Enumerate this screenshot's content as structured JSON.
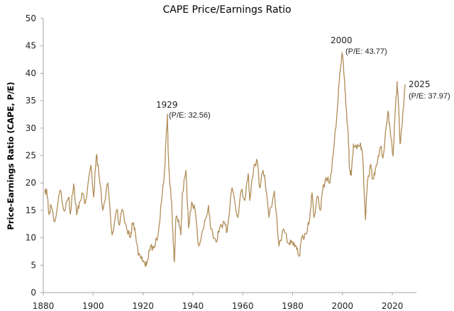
{
  "chart_data": {
    "type": "line",
    "title": "CAPE Price/Earnings Ratio",
    "xlabel": "",
    "ylabel": "Price-Earnings Ratio (CAPE, P/E)",
    "xlim": [
      1880,
      2030
    ],
    "ylim": [
      0,
      50
    ],
    "x_ticks": [
      1880,
      1900,
      1920,
      1940,
      1960,
      1980,
      2000,
      2020
    ],
    "y_ticks": [
      0,
      5,
      10,
      15,
      20,
      25,
      30,
      35,
      40,
      45,
      50
    ],
    "grid": false,
    "legend": null,
    "series_color": "#B08D57",
    "series": [
      {
        "name": "CAPE",
        "x": [
          1880.6,
          1881.4,
          1882.3,
          1883.1,
          1884.6,
          1886.8,
          1888.3,
          1890.2,
          1890.8,
          1892.2,
          1893.4,
          1894.5,
          1895.9,
          1896.8,
          1899.1,
          1900.2,
          1901.3,
          1902.2,
          1903.9,
          1905.9,
          1907.6,
          1909.6,
          1910.4,
          1911.6,
          1913.6,
          1915.0,
          1915.8,
          1916.7,
          1918.1,
          1919.5,
          1921.0,
          1921.8,
          1923.0,
          1924.4,
          1926.1,
          1927.5,
          1928.6,
          1929.2,
          1929.8,
          1930.1,
          1930.6,
          1931.5,
          1932.1,
          1932.6,
          1933.2,
          1934.3,
          1935.2,
          1935.8,
          1937.2,
          1938.3,
          1939.5,
          1940.9,
          1942.3,
          1944.3,
          1946.3,
          1947.1,
          1949.4,
          1950.8,
          1952.8,
          1953.7,
          1955.7,
          1958.0,
          1959.4,
          1960.8,
          1962.2,
          1962.8,
          1964.5,
          1965.9,
          1966.8,
          1967.9,
          1968.8,
          1970.5,
          1972.7,
          1974.5,
          1976.4,
          1978.4,
          1979.3,
          1980.5,
          1981.6,
          1982.7,
          1983.5,
          1985.5,
          1986.9,
          1987.8,
          1988.6,
          1990.0,
          1991.1,
          1992.0,
          1993.4,
          1995.0,
          1996.3,
          1997.8,
          1998.6,
          1999.8,
          2000.1,
          2000.9,
          2001.4,
          2002.3,
          2002.8,
          2003.5,
          2004.4,
          2005.8,
          2007.2,
          2008.1,
          2009.2,
          2010.0,
          2011.4,
          2012.0,
          2012.9,
          2014.3,
          2015.4,
          2016.2,
          2018.3,
          2019.1,
          2020.3,
          2021.0,
          2021.9,
          2022.4,
          2023.1,
          2023.9,
          2025.1
        ],
        "values": [
          18.2,
          18.7,
          14.2,
          15.9,
          12.9,
          18.7,
          14.9,
          17.4,
          14.3,
          19.8,
          14.2,
          16.5,
          18.0,
          16.3,
          23.2,
          17.4,
          25.2,
          22.3,
          15.0,
          20.0,
          10.5,
          15.2,
          12.3,
          15.2,
          11.4,
          10.1,
          12.7,
          11.8,
          6.8,
          6.6,
          4.7,
          6.0,
          8.4,
          8.1,
          10.7,
          16.8,
          22.0,
          27.5,
          32.56,
          25.3,
          21.0,
          16.3,
          9.4,
          5.6,
          13.7,
          13.3,
          10.5,
          18.1,
          22.3,
          11.8,
          16.5,
          15.0,
          8.5,
          11.6,
          15.9,
          11.6,
          9.2,
          12.0,
          12.7,
          11.1,
          19.1,
          13.7,
          18.7,
          16.8,
          21.7,
          16.8,
          23.2,
          23.9,
          19.1,
          21.9,
          21.4,
          13.7,
          18.5,
          8.5,
          11.6,
          9.0,
          9.0,
          9.2,
          7.9,
          6.6,
          9.8,
          10.7,
          13.7,
          18.2,
          13.7,
          17.6,
          15.0,
          18.5,
          21.0,
          20.0,
          25.3,
          32.7,
          37.9,
          43.77,
          42.8,
          38.2,
          34.0,
          28.8,
          22.7,
          21.3,
          27.1,
          26.2,
          27.3,
          24.9,
          13.3,
          20.2,
          23.4,
          20.7,
          21.4,
          24.9,
          26.6,
          24.5,
          33.1,
          29.7,
          24.9,
          31.8,
          38.5,
          34.9,
          27.1,
          30.5,
          37.97
        ]
      }
    ],
    "annotations": [
      {
        "year_label": "1929",
        "pe_label": "(P/E: 32.56)",
        "x": 1929.8,
        "y": 32.56
      },
      {
        "year_label": "2000",
        "pe_label": "(P/E: 43.77)",
        "x": 1999.8,
        "y": 43.77
      },
      {
        "year_label": "2025",
        "pe_label": "(P/E: 37.97)",
        "x": 2025.1,
        "y": 37.97
      }
    ]
  }
}
